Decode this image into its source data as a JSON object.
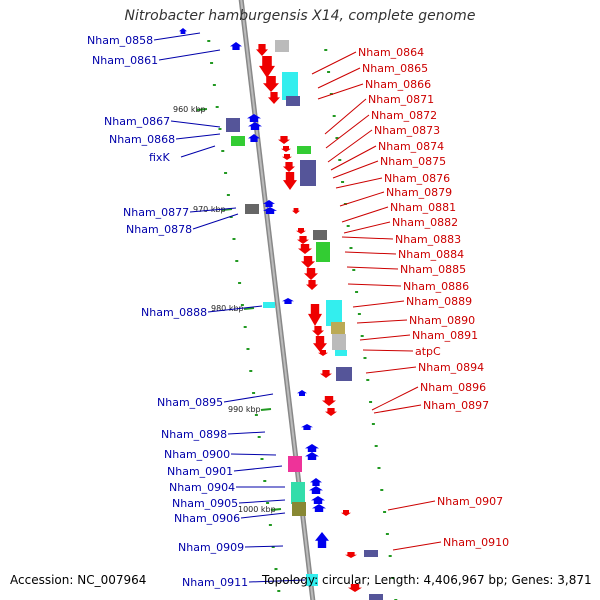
{
  "title": "Nitrobacter hamburgensis X14, complete genome",
  "footer": {
    "accession": "Accession: NC_007964",
    "topology": "Topology: circular; Length: 4,406,967 bp; Genes: 3,871"
  },
  "scale_labels": [
    "960 kbp",
    "970 kbp",
    "980 kbp",
    "990 kbp",
    "1000 kbp"
  ],
  "left_genes": [
    "Nham_0858",
    "Nham_0861",
    "Nham_0867",
    "Nham_0868",
    "fixK",
    "Nham_0877",
    "Nham_0878",
    "Nham_0888",
    "Nham_0895",
    "Nham_0898",
    "Nham_0900",
    "Nham_0901",
    "Nham_0904",
    "Nham_0905",
    "Nham_0906",
    "Nham_0909",
    "Nham_0911"
  ],
  "right_genes": [
    "Nham_0864",
    "Nham_0865",
    "Nham_0866",
    "Nham_0871",
    "Nham_0872",
    "Nham_0873",
    "Nham_0874",
    "Nham_0875",
    "Nham_0876",
    "Nham_0879",
    "Nham_0881",
    "Nham_0882",
    "Nham_0883",
    "Nham_0884",
    "Nham_0885",
    "Nham_0886",
    "Nham_0889",
    "Nham_0890",
    "Nham_0891",
    "atpC",
    "Nham_0894",
    "Nham_0896",
    "Nham_0897",
    "Nham_0907",
    "Nham_0910"
  ],
  "colors": {
    "backbone": "#999999",
    "forward_gene": "#ee0000",
    "reverse_gene": "#0000ee",
    "left_label": "#0000aa",
    "right_label": "#cc0000",
    "scale_dot": "#229922",
    "cog_cyan": "#33eeee",
    "cog_purple": "#555599",
    "cog_gray": "#bbbbbb",
    "cog_green": "#33cc33",
    "cog_pink": "#ee3399",
    "cog_teal": "#33ddaa",
    "cog_olive": "#888833",
    "cog_khaki": "#bbaa55",
    "cog_darkgray": "#666666"
  }
}
